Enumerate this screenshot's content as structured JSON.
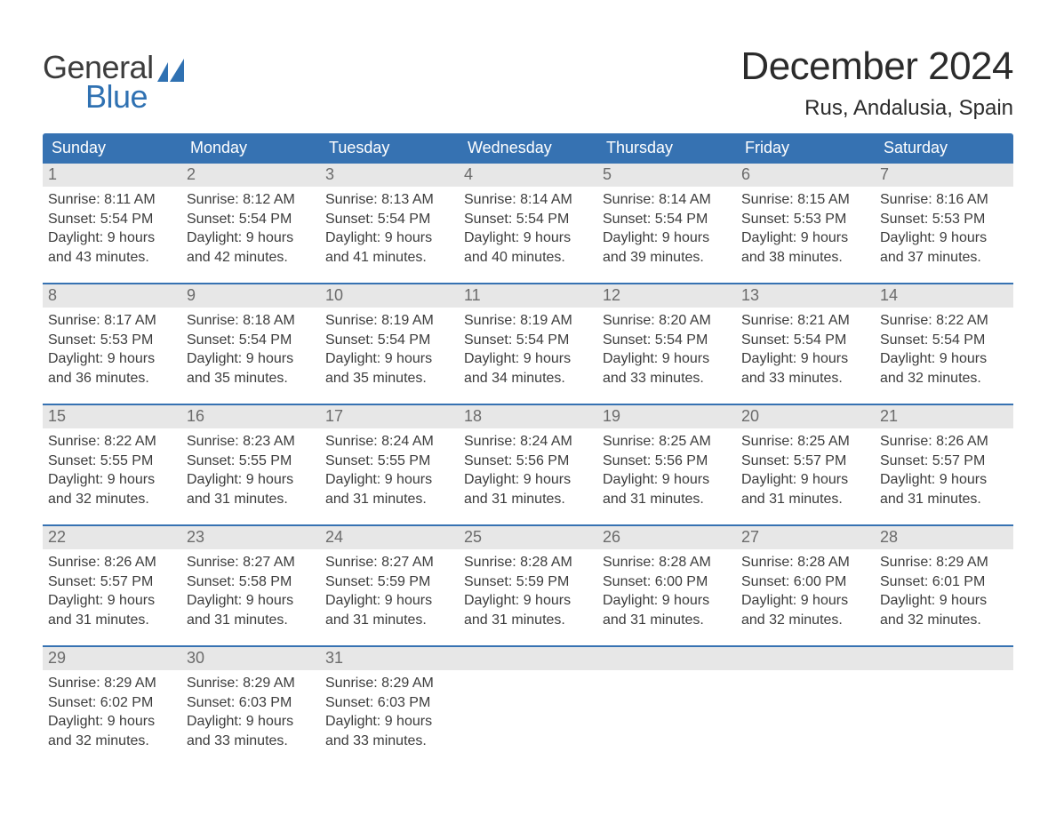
{
  "brand": {
    "word1": "General",
    "word2": "Blue"
  },
  "title": "December 2024",
  "location": "Rus, Andalusia, Spain",
  "colors": {
    "header_bg": "#3672b2",
    "header_text": "#ffffff",
    "daynum_bg": "#e7e7e7",
    "daynum_text": "#6b6b6b",
    "body_text": "#3c3c3c",
    "week_border": "#3672b2",
    "logo_accent": "#2f71b2"
  },
  "daysOfWeek": [
    "Sunday",
    "Monday",
    "Tuesday",
    "Wednesday",
    "Thursday",
    "Friday",
    "Saturday"
  ],
  "labels": {
    "sunrise": "Sunrise:",
    "sunset": "Sunset:",
    "daylight": "Daylight:"
  },
  "first_day_index": 0,
  "days": [
    {
      "n": 1,
      "sunrise": "8:11 AM",
      "sunset": "5:54 PM",
      "daylight1": "9 hours",
      "daylight2": "and 43 minutes."
    },
    {
      "n": 2,
      "sunrise": "8:12 AM",
      "sunset": "5:54 PM",
      "daylight1": "9 hours",
      "daylight2": "and 42 minutes."
    },
    {
      "n": 3,
      "sunrise": "8:13 AM",
      "sunset": "5:54 PM",
      "daylight1": "9 hours",
      "daylight2": "and 41 minutes."
    },
    {
      "n": 4,
      "sunrise": "8:14 AM",
      "sunset": "5:54 PM",
      "daylight1": "9 hours",
      "daylight2": "and 40 minutes."
    },
    {
      "n": 5,
      "sunrise": "8:14 AM",
      "sunset": "5:54 PM",
      "daylight1": "9 hours",
      "daylight2": "and 39 minutes."
    },
    {
      "n": 6,
      "sunrise": "8:15 AM",
      "sunset": "5:53 PM",
      "daylight1": "9 hours",
      "daylight2": "and 38 minutes."
    },
    {
      "n": 7,
      "sunrise": "8:16 AM",
      "sunset": "5:53 PM",
      "daylight1": "9 hours",
      "daylight2": "and 37 minutes."
    },
    {
      "n": 8,
      "sunrise": "8:17 AM",
      "sunset": "5:53 PM",
      "daylight1": "9 hours",
      "daylight2": "and 36 minutes."
    },
    {
      "n": 9,
      "sunrise": "8:18 AM",
      "sunset": "5:54 PM",
      "daylight1": "9 hours",
      "daylight2": "and 35 minutes."
    },
    {
      "n": 10,
      "sunrise": "8:19 AM",
      "sunset": "5:54 PM",
      "daylight1": "9 hours",
      "daylight2": "and 35 minutes."
    },
    {
      "n": 11,
      "sunrise": "8:19 AM",
      "sunset": "5:54 PM",
      "daylight1": "9 hours",
      "daylight2": "and 34 minutes."
    },
    {
      "n": 12,
      "sunrise": "8:20 AM",
      "sunset": "5:54 PM",
      "daylight1": "9 hours",
      "daylight2": "and 33 minutes."
    },
    {
      "n": 13,
      "sunrise": "8:21 AM",
      "sunset": "5:54 PM",
      "daylight1": "9 hours",
      "daylight2": "and 33 minutes."
    },
    {
      "n": 14,
      "sunrise": "8:22 AM",
      "sunset": "5:54 PM",
      "daylight1": "9 hours",
      "daylight2": "and 32 minutes."
    },
    {
      "n": 15,
      "sunrise": "8:22 AM",
      "sunset": "5:55 PM",
      "daylight1": "9 hours",
      "daylight2": "and 32 minutes."
    },
    {
      "n": 16,
      "sunrise": "8:23 AM",
      "sunset": "5:55 PM",
      "daylight1": "9 hours",
      "daylight2": "and 31 minutes."
    },
    {
      "n": 17,
      "sunrise": "8:24 AM",
      "sunset": "5:55 PM",
      "daylight1": "9 hours",
      "daylight2": "and 31 minutes."
    },
    {
      "n": 18,
      "sunrise": "8:24 AM",
      "sunset": "5:56 PM",
      "daylight1": "9 hours",
      "daylight2": "and 31 minutes."
    },
    {
      "n": 19,
      "sunrise": "8:25 AM",
      "sunset": "5:56 PM",
      "daylight1": "9 hours",
      "daylight2": "and 31 minutes."
    },
    {
      "n": 20,
      "sunrise": "8:25 AM",
      "sunset": "5:57 PM",
      "daylight1": "9 hours",
      "daylight2": "and 31 minutes."
    },
    {
      "n": 21,
      "sunrise": "8:26 AM",
      "sunset": "5:57 PM",
      "daylight1": "9 hours",
      "daylight2": "and 31 minutes."
    },
    {
      "n": 22,
      "sunrise": "8:26 AM",
      "sunset": "5:57 PM",
      "daylight1": "9 hours",
      "daylight2": "and 31 minutes."
    },
    {
      "n": 23,
      "sunrise": "8:27 AM",
      "sunset": "5:58 PM",
      "daylight1": "9 hours",
      "daylight2": "and 31 minutes."
    },
    {
      "n": 24,
      "sunrise": "8:27 AM",
      "sunset": "5:59 PM",
      "daylight1": "9 hours",
      "daylight2": "and 31 minutes."
    },
    {
      "n": 25,
      "sunrise": "8:28 AM",
      "sunset": "5:59 PM",
      "daylight1": "9 hours",
      "daylight2": "and 31 minutes."
    },
    {
      "n": 26,
      "sunrise": "8:28 AM",
      "sunset": "6:00 PM",
      "daylight1": "9 hours",
      "daylight2": "and 31 minutes."
    },
    {
      "n": 27,
      "sunrise": "8:28 AM",
      "sunset": "6:00 PM",
      "daylight1": "9 hours",
      "daylight2": "and 32 minutes."
    },
    {
      "n": 28,
      "sunrise": "8:29 AM",
      "sunset": "6:01 PM",
      "daylight1": "9 hours",
      "daylight2": "and 32 minutes."
    },
    {
      "n": 29,
      "sunrise": "8:29 AM",
      "sunset": "6:02 PM",
      "daylight1": "9 hours",
      "daylight2": "and 32 minutes."
    },
    {
      "n": 30,
      "sunrise": "8:29 AM",
      "sunset": "6:03 PM",
      "daylight1": "9 hours",
      "daylight2": "and 33 minutes."
    },
    {
      "n": 31,
      "sunrise": "8:29 AM",
      "sunset": "6:03 PM",
      "daylight1": "9 hours",
      "daylight2": "and 33 minutes."
    }
  ]
}
